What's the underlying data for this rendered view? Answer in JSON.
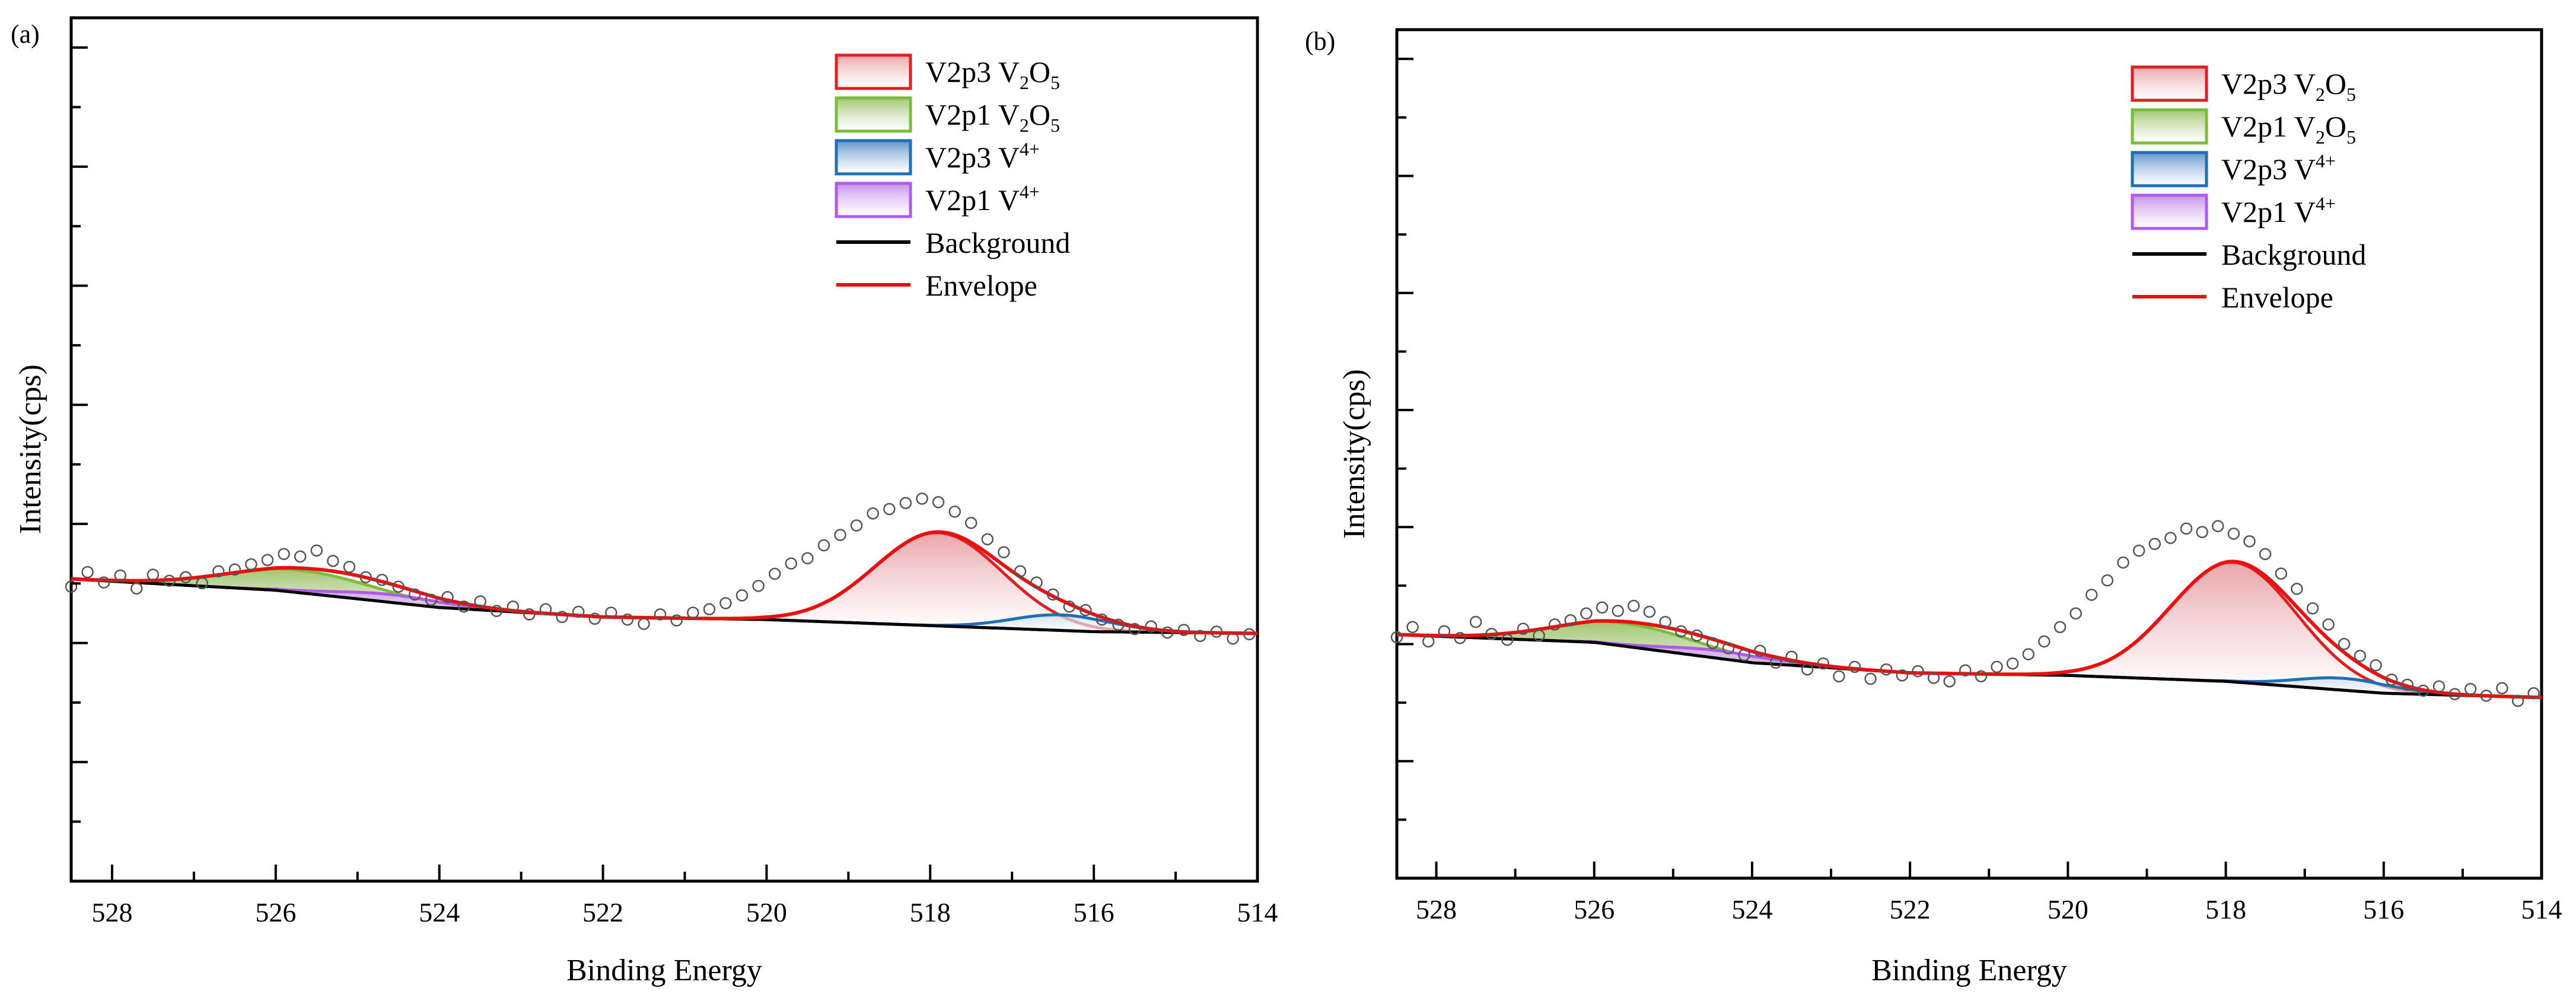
{
  "chart_data": [
    {
      "panel_label": "(a)",
      "type": "scatter",
      "title": "",
      "xlabel": "Binding Energy",
      "ylabel": "Intensity(cps)",
      "xlim": [
        528.5,
        514
      ],
      "ylim": [
        0,
        100
      ],
      "x_ticks": [
        528,
        526,
        524,
        522,
        520,
        518,
        516,
        514
      ],
      "x_tick_labels": [
        "528",
        "526",
        "524",
        "522",
        "520",
        "518",
        "516",
        "514"
      ],
      "y_tick_labels_shown": false,
      "background_line": {
        "x": [
          528.5,
          526,
          524,
          522,
          520,
          518,
          516,
          514
        ],
        "y": [
          35.0,
          33.7,
          31.7,
          30.6,
          30.3,
          29.6,
          28.9,
          28.7
        ]
      },
      "components": [
        {
          "name": "V2p3 V2O5",
          "center": 517.9,
          "amplitude": 10.8,
          "sigma": 0.78
        },
        {
          "name": "V2p1 V2O5",
          "center": 525.7,
          "amplitude": 2.6,
          "sigma": 0.9
        },
        {
          "name": "V2p3 V4+",
          "center": 516.4,
          "amplitude": 1.8,
          "sigma": 0.6
        },
        {
          "name": "V2p1 V4+",
          "center": 524.6,
          "amplitude": 0.9,
          "sigma": 0.7
        }
      ],
      "data_points": {
        "x": [
          528.5,
          528.3,
          528.1,
          527.9,
          527.7,
          527.5,
          527.3,
          527.1,
          526.9,
          526.7,
          526.5,
          526.3,
          526.1,
          525.9,
          525.7,
          525.5,
          525.3,
          525.1,
          524.9,
          524.7,
          524.5,
          524.3,
          524.1,
          523.9,
          523.7,
          523.5,
          523.3,
          523.1,
          522.9,
          522.7,
          522.5,
          522.3,
          522.1,
          521.9,
          521.7,
          521.5,
          521.3,
          521.1,
          520.9,
          520.7,
          520.5,
          520.3,
          520.1,
          519.9,
          519.7,
          519.5,
          519.3,
          519.1,
          518.9,
          518.7,
          518.5,
          518.3,
          518.1,
          517.9,
          517.7,
          517.5,
          517.3,
          517.1,
          516.9,
          516.7,
          516.5,
          516.3,
          516.1,
          515.9,
          515.7,
          515.5,
          515.3,
          515.1,
          514.9,
          514.7,
          514.5,
          514.3,
          514.1
        ],
        "y": [
          34.1,
          35.8,
          34.6,
          35.4,
          33.9,
          35.5,
          34.8,
          35.2,
          34.5,
          35.9,
          36.1,
          36.7,
          37.2,
          37.9,
          37.6,
          38.3,
          37.1,
          36.4,
          35.2,
          34.9,
          34.1,
          33.2,
          32.6,
          32.9,
          31.8,
          32.4,
          31.3,
          31.8,
          30.9,
          31.5,
          30.6,
          31.2,
          30.4,
          31.1,
          30.3,
          29.8,
          30.9,
          30.2,
          31.1,
          31.5,
          32.2,
          33.1,
          34.2,
          35.6,
          36.8,
          37.4,
          38.9,
          40.1,
          41.2,
          42.6,
          43.1,
          43.8,
          44.3,
          43.9,
          42.8,
          41.5,
          39.6,
          38.1,
          35.9,
          34.6,
          33.2,
          31.8,
          31.4,
          30.3,
          29.7,
          29.2,
          29.5,
          28.8,
          29.1,
          28.4,
          28.9,
          28.1,
          28.6
        ]
      }
    },
    {
      "panel_label": "(b)",
      "type": "scatter",
      "title": "",
      "xlabel": "Binding Energy",
      "ylabel": "Intensity(cps)",
      "xlim": [
        528.5,
        514
      ],
      "ylim": [
        0,
        100
      ],
      "x_ticks": [
        528,
        526,
        524,
        522,
        520,
        518,
        516,
        514
      ],
      "x_tick_labels": [
        "528",
        "526",
        "524",
        "522",
        "520",
        "518",
        "516",
        "514"
      ],
      "y_tick_labels_shown": false,
      "background_line": {
        "x": [
          528.5,
          526,
          524,
          522,
          520,
          518,
          516,
          514
        ],
        "y": [
          28.7,
          27.8,
          25.4,
          24.2,
          23.9,
          23.2,
          21.8,
          21.3
        ]
      },
      "components": [
        {
          "name": "V2p3 V2O5",
          "center": 517.9,
          "amplitude": 14.1,
          "sigma": 0.8
        },
        {
          "name": "V2p1 V2O5",
          "center": 525.6,
          "amplitude": 2.7,
          "sigma": 0.9
        },
        {
          "name": "V2p3 V4+",
          "center": 516.5,
          "amplitude": 1.4,
          "sigma": 0.6
        },
        {
          "name": "V2p1 V4+",
          "center": 524.4,
          "amplitude": 0.9,
          "sigma": 0.7
        }
      ],
      "data_points": {
        "x": [
          528.5,
          528.3,
          528.1,
          527.9,
          527.7,
          527.5,
          527.3,
          527.1,
          526.9,
          526.7,
          526.5,
          526.3,
          526.1,
          525.9,
          525.7,
          525.5,
          525.3,
          525.1,
          524.9,
          524.7,
          524.5,
          524.3,
          524.1,
          523.9,
          523.7,
          523.5,
          523.3,
          523.1,
          522.9,
          522.7,
          522.5,
          522.3,
          522.1,
          521.9,
          521.7,
          521.5,
          521.3,
          521.1,
          520.9,
          520.7,
          520.5,
          520.3,
          520.1,
          519.9,
          519.7,
          519.5,
          519.3,
          519.1,
          518.9,
          518.7,
          518.5,
          518.3,
          518.1,
          517.9,
          517.7,
          517.5,
          517.3,
          517.1,
          516.9,
          516.7,
          516.5,
          516.3,
          516.1,
          515.9,
          515.7,
          515.5,
          515.3,
          515.1,
          514.9,
          514.7,
          514.5,
          514.3,
          514.1
        ],
        "y": [
          28.4,
          29.6,
          27.9,
          29.1,
          28.3,
          30.2,
          28.8,
          28.1,
          29.4,
          28.6,
          29.9,
          30.4,
          31.2,
          31.9,
          31.5,
          32.1,
          31.4,
          30.2,
          29.1,
          28.6,
          27.7,
          27.1,
          26.3,
          26.8,
          25.4,
          26.1,
          24.6,
          25.3,
          23.8,
          24.9,
          23.5,
          24.6,
          23.9,
          24.4,
          23.6,
          23.2,
          24.5,
          23.8,
          24.9,
          25.3,
          26.4,
          27.9,
          29.6,
          31.2,
          33.4,
          35.1,
          37.2,
          38.6,
          39.4,
          40.1,
          41.2,
          40.8,
          41.5,
          40.6,
          39.7,
          38.2,
          35.9,
          34.1,
          31.8,
          29.9,
          27.6,
          26.2,
          25.1,
          23.4,
          22.8,
          22.1,
          22.6,
          21.7,
          22.3,
          21.5,
          22.4,
          20.9,
          21.8
        ]
      }
    }
  ],
  "legend": [
    {
      "id": "v2p3_v2o5",
      "type": "area",
      "label_main": "V2p3  V",
      "sub": "2",
      "mid": "O",
      "sub2": "5",
      "sup": "",
      "fill_color": "#e8a0a4",
      "stroke_color": "#e02020"
    },
    {
      "id": "v2p1_v2o5",
      "type": "area",
      "label_main": "V2p1  V",
      "sub": "2",
      "mid": "O",
      "sub2": "5",
      "sup": "",
      "fill_color": "#9cc36a",
      "stroke_color": "#7cbc3c"
    },
    {
      "id": "v2p3_v4",
      "type": "area",
      "label_main": "V2p3  V",
      "sub": "",
      "mid": "",
      "sub2": "",
      "sup": "4+",
      "fill_color": "#5b8fc8",
      "stroke_color": "#1f6fb4"
    },
    {
      "id": "v2p1_v4",
      "type": "area",
      "label_main": "V2p1  V",
      "sub": "",
      "mid": "",
      "sub2": "",
      "sup": "4+",
      "fill_color": "#c58be8",
      "stroke_color": "#b05ae8"
    },
    {
      "id": "background",
      "type": "line",
      "label_main": "Background",
      "sub": "",
      "mid": "",
      "sub2": "",
      "sup": "",
      "fill_color": "",
      "stroke_color": "#000000"
    },
    {
      "id": "envelope",
      "type": "line",
      "label_main": "Envelope",
      "sub": "",
      "mid": "",
      "sub2": "",
      "sup": "",
      "fill_color": "",
      "stroke_color": "#e81010"
    }
  ],
  "colors": {
    "envelope": "#e81010",
    "background": "#000000",
    "v2p3_v2o5": "#e02020",
    "v2p1_v2o5": "#7cbc3c",
    "v2p3_v4": "#1f6fb4",
    "v2p1_v4": "#b05ae8",
    "marker_stroke": "#555555"
  }
}
